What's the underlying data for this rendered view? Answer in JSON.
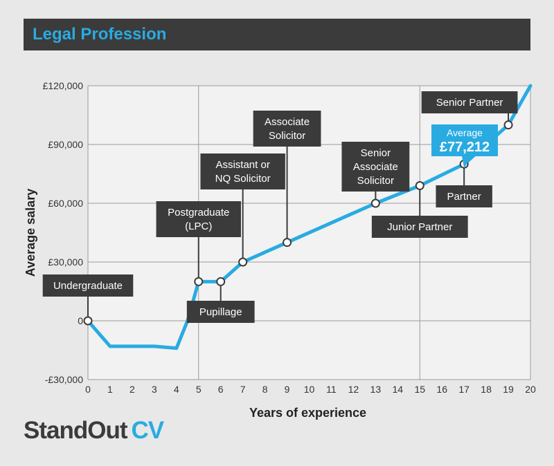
{
  "header": {
    "title": "Legal Profession"
  },
  "logo": {
    "brand": "StandOut",
    "accent": "CV"
  },
  "colors": {
    "line": "#29abe2",
    "callout_bg": "#3b3b3b",
    "callout_text": "#ffffff",
    "highlight_bg": "#29abe2",
    "grid": "#9a9a9a",
    "plot_bg": "#f2f2f2"
  },
  "chart_data": {
    "type": "line",
    "xlabel": "Years of experience",
    "ylabel": "Average salary",
    "x_ticks": [
      0,
      1,
      2,
      3,
      4,
      5,
      6,
      7,
      8,
      9,
      10,
      11,
      12,
      13,
      14,
      15,
      16,
      17,
      18,
      19,
      20
    ],
    "y_ticks": [
      {
        "value": -30000,
        "label": "-£30,000"
      },
      {
        "value": 0,
        "label": "0"
      },
      {
        "value": 30000,
        "label": "£30,000"
      },
      {
        "value": 60000,
        "label": "£60,000"
      },
      {
        "value": 90000,
        "label": "£90,000"
      },
      {
        "value": 120000,
        "label": "£120,000"
      }
    ],
    "xlim": [
      0,
      20
    ],
    "ylim": [
      -30000,
      120000
    ],
    "vertical_gridlines": [
      5,
      15
    ],
    "series": [
      {
        "x": [
          0,
          1,
          3,
          4,
          4.5,
          5,
          6,
          7,
          9,
          13,
          15,
          17,
          19,
          20
        ],
        "y": [
          0,
          -13000,
          -13000,
          -14000,
          0,
          20000,
          20000,
          30000,
          40000,
          60000,
          69000,
          80000,
          100000,
          120000
        ]
      }
    ],
    "markers": [
      {
        "x": 0,
        "y": 0,
        "label": [
          "Undergraduate"
        ],
        "side": "above"
      },
      {
        "x": 5,
        "y": 20000,
        "label": [
          "Postgraduate",
          "(LPC)"
        ],
        "side": "above"
      },
      {
        "x": 6,
        "y": 20000,
        "label": [
          "Pupillage"
        ],
        "side": "below"
      },
      {
        "x": 7,
        "y": 30000,
        "label": [
          "Assistant or",
          "NQ Solicitor"
        ],
        "side": "above"
      },
      {
        "x": 9,
        "y": 40000,
        "label": [
          "Associate",
          "Solicitor"
        ],
        "side": "above"
      },
      {
        "x": 13,
        "y": 60000,
        "label": [
          "Senior",
          "Associate",
          "Solicitor"
        ],
        "side": "above"
      },
      {
        "x": 15,
        "y": 69000,
        "label": [
          "Junior Partner"
        ],
        "side": "below"
      },
      {
        "x": 17,
        "y": 80000,
        "label": [
          "Partner"
        ],
        "side": "below"
      },
      {
        "x": 19,
        "y": 100000,
        "label": [
          "Senior Partner"
        ],
        "side": "above"
      }
    ],
    "average": {
      "x": 17,
      "y": 77212,
      "label": "Average",
      "value": "£77,212"
    }
  }
}
